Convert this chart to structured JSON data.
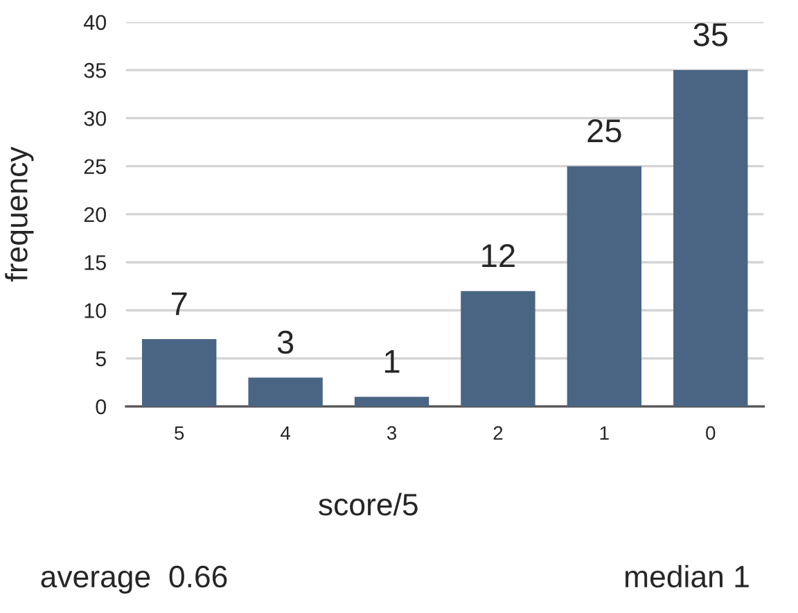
{
  "chart_data": {
    "type": "bar",
    "xlabel": "score/5",
    "ylabel": "frequency",
    "categories": [
      "5",
      "4",
      "3",
      "2",
      "1",
      "0"
    ],
    "values": [
      7,
      3,
      1,
      12,
      25,
      35
    ],
    "color": "#4a6584",
    "ylim": [
      0,
      40
    ],
    "yticks": [
      0,
      5,
      10,
      15,
      20,
      25,
      30,
      35,
      40
    ],
    "grid": "y",
    "data_labels": true,
    "annotations": [
      "average  0.66",
      "median 1"
    ]
  }
}
